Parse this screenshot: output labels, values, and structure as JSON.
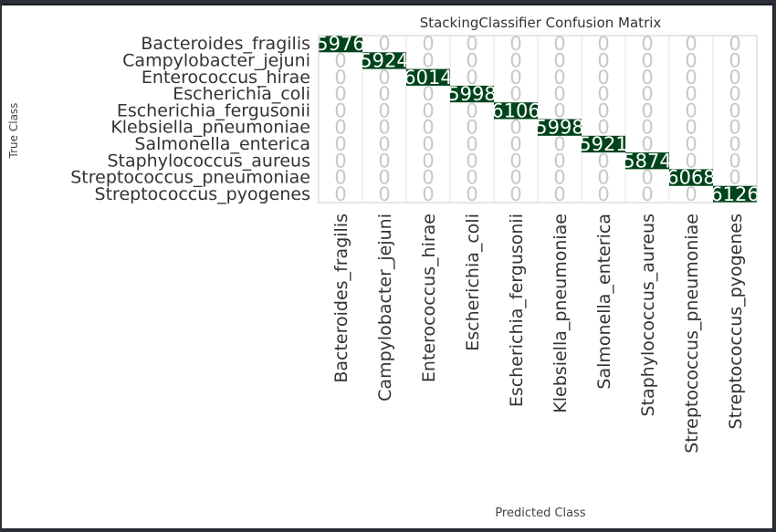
{
  "chart_data": {
    "type": "heatmap",
    "title": "StackingClassifier Confusion Matrix",
    "xlabel": "Predicted Class",
    "ylabel": "True Class",
    "classes": [
      "Bacteroides_fragilis",
      "Campylobacter_jejuni",
      "Enterococcus_hirae",
      "Escherichia_coli",
      "Escherichia_fergusonii",
      "Klebsiella_pneumoniae",
      "Salmonella_enterica",
      "Staphylococcus_aureus",
      "Streptococcus_pneumoniae",
      "Streptococcus_pyogenes"
    ],
    "matrix": [
      [
        "5976",
        "0",
        "0",
        "0",
        "0",
        "0",
        "0",
        "0",
        "0",
        "0"
      ],
      [
        "0",
        "5924",
        "0",
        "0",
        "0",
        "0",
        "0",
        "0",
        "0",
        "0"
      ],
      [
        "0",
        "0",
        "6014",
        "0",
        "0",
        "0",
        "0",
        "0",
        "0",
        "0"
      ],
      [
        "0",
        "0",
        "0",
        "5998",
        "0",
        "0",
        "0",
        "0",
        "0",
        "0"
      ],
      [
        "0",
        "0",
        "0",
        "0",
        "6106",
        "0",
        "0",
        "0",
        "0",
        "0"
      ],
      [
        "0",
        "0",
        "0",
        "0",
        "0",
        "5998",
        "0",
        "0",
        "0",
        "0"
      ],
      [
        "0",
        "0",
        "0",
        "0",
        "0",
        "0",
        "5921",
        "0",
        "0",
        "0"
      ],
      [
        "0",
        "0",
        "0",
        "0",
        "0",
        "0",
        "0",
        "5874",
        "0",
        "0"
      ],
      [
        "0",
        "0",
        "0",
        "0",
        "0",
        "0",
        "0",
        "0",
        "6068",
        "0"
      ],
      [
        "0",
        "0",
        "0",
        "0",
        "0",
        "0",
        "0",
        "0",
        "0",
        "6126"
      ]
    ],
    "diagonal_color": "#00441b",
    "grid": true
  }
}
